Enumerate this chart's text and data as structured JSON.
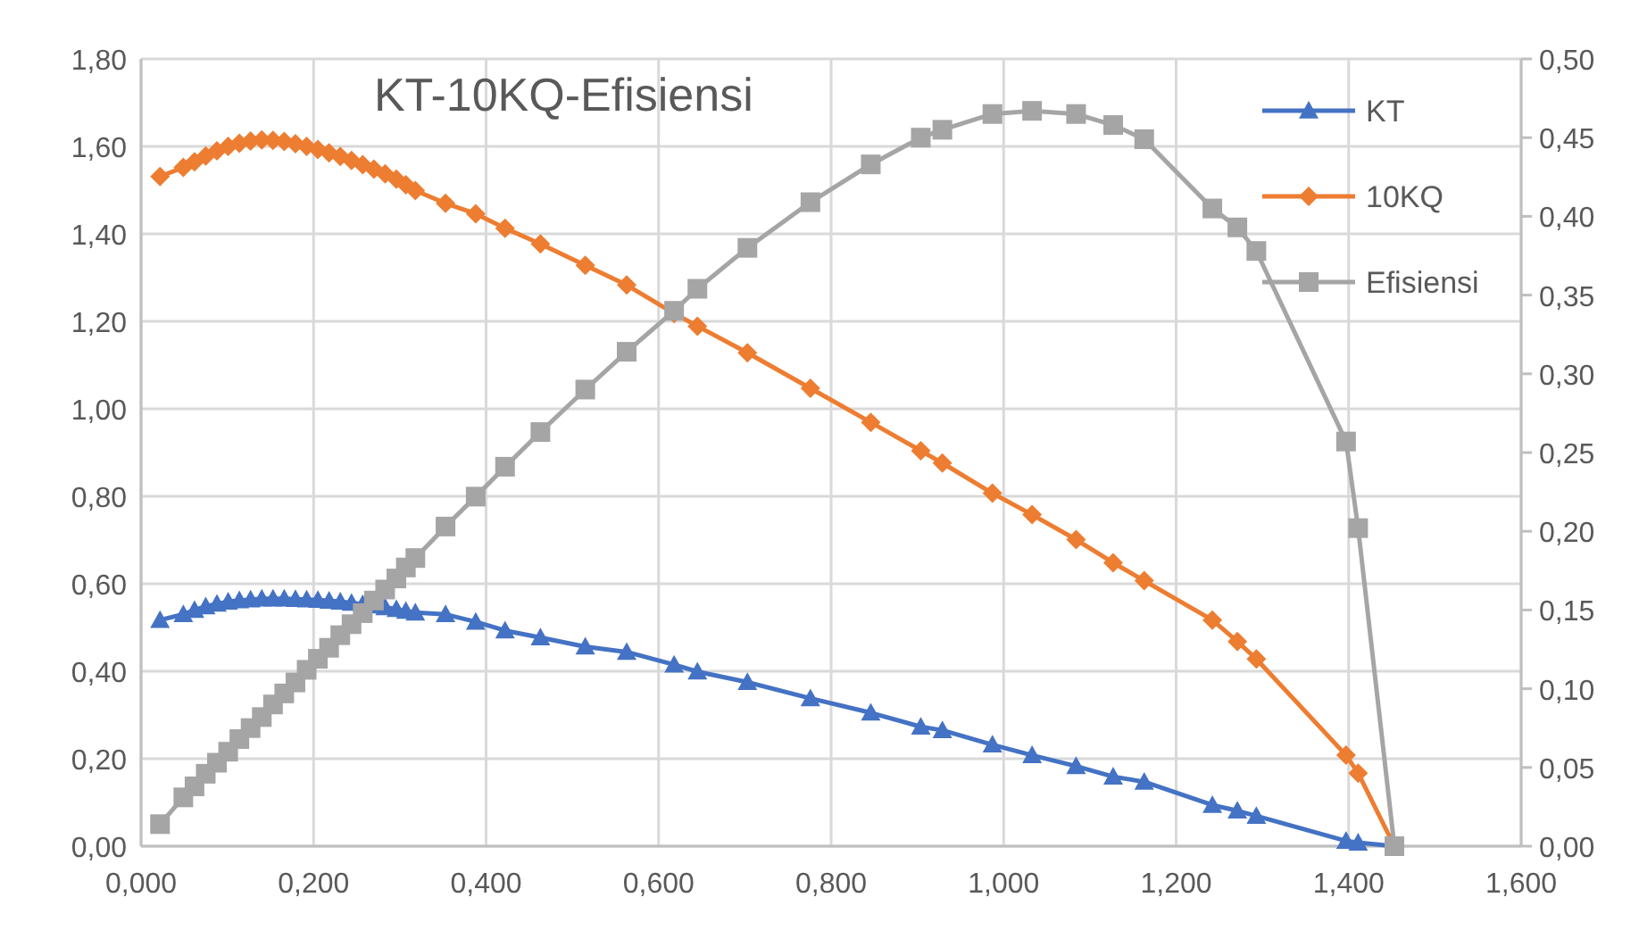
{
  "chart_data": {
    "type": "line",
    "title": "KT-10KQ-Efisiensi",
    "x": [
      0.022,
      0.049,
      0.062,
      0.075,
      0.088,
      0.101,
      0.114,
      0.127,
      0.14,
      0.153,
      0.166,
      0.179,
      0.192,
      0.205,
      0.218,
      0.231,
      0.244,
      0.257,
      0.27,
      0.283,
      0.296,
      0.307,
      0.318,
      0.353,
      0.388,
      0.422,
      0.463,
      0.515,
      0.563,
      0.618,
      0.645,
      0.703,
      0.776,
      0.846,
      0.904,
      0.929,
      0.987,
      1.033,
      1.084,
      1.127,
      1.163,
      1.242,
      1.271,
      1.293,
      1.397,
      1.411,
      1.453
    ],
    "series": [
      {
        "name": "KT",
        "color": "#4472c4",
        "marker": "triangle",
        "values": [
          0.517,
          0.53,
          0.54,
          0.548,
          0.554,
          0.559,
          0.562,
          0.564,
          0.566,
          0.566,
          0.566,
          0.565,
          0.564,
          0.563,
          0.561,
          0.559,
          0.556,
          0.553,
          0.55,
          0.546,
          0.542,
          0.538,
          0.534,
          0.53,
          0.513,
          0.493,
          0.477,
          0.456,
          0.444,
          0.415,
          0.399,
          0.375,
          0.338,
          0.305,
          0.273,
          0.265,
          0.232,
          0.208,
          0.183,
          0.159,
          0.147,
          0.094,
          0.081,
          0.069,
          0.012,
          0.008,
          0
        ]
      },
      {
        "name": "10KQ",
        "color": "#ed7d31",
        "marker": "diamond",
        "values": [
          1.531,
          1.552,
          1.565,
          1.578,
          1.59,
          1.6,
          1.607,
          1.612,
          1.615,
          1.614,
          1.611,
          1.606,
          1.6,
          1.593,
          1.585,
          1.577,
          1.568,
          1.558,
          1.548,
          1.537,
          1.525,
          1.512,
          1.499,
          1.47,
          1.446,
          1.413,
          1.377,
          1.328,
          1.283,
          1.218,
          1.189,
          1.128,
          1.047,
          0.969,
          0.904,
          0.876,
          0.807,
          0.758,
          0.701,
          0.648,
          0.607,
          0.517,
          0.468,
          0.428,
          0.208,
          0.167,
          0
        ]
      },
      {
        "name": "Efisiensi",
        "color": "#a5a5a5",
        "marker": "square",
        "axis": "y2",
        "values": [
          0.014,
          0.031,
          0.038,
          0.046,
          0.053,
          0.06,
          0.068,
          0.075,
          0.082,
          0.09,
          0.097,
          0.104,
          0.112,
          0.119,
          0.126,
          0.134,
          0.141,
          0.148,
          0.156,
          0.163,
          0.17,
          0.177,
          0.183,
          0.203,
          0.222,
          0.241,
          0.263,
          0.29,
          0.314,
          0.34,
          0.354,
          0.38,
          0.409,
          0.433,
          0.45,
          0.455,
          0.465,
          0.467,
          0.465,
          0.458,
          0.449,
          0.405,
          0.393,
          0.378,
          0.257,
          0.202,
          0
        ]
      }
    ],
    "xlim": [
      0,
      1.6
    ],
    "xticks": [
      {
        "value": 0,
        "label": "0,000"
      },
      {
        "value": 0.2,
        "label": "0,200"
      },
      {
        "value": 0.4,
        "label": "0,400"
      },
      {
        "value": 0.6,
        "label": "0,600"
      },
      {
        "value": 0.8,
        "label": "0,800"
      },
      {
        "value": 1.0,
        "label": "1,000"
      },
      {
        "value": 1.2,
        "label": "1,200"
      },
      {
        "value": 1.4,
        "label": "1,400"
      },
      {
        "value": 1.6,
        "label": "1,600"
      }
    ],
    "ylim": [
      0,
      1.8
    ],
    "yticks": [
      {
        "value": 0,
        "label": "0,00"
      },
      {
        "value": 0.2,
        "label": "0,20"
      },
      {
        "value": 0.4,
        "label": "0,40"
      },
      {
        "value": 0.6,
        "label": "0,60"
      },
      {
        "value": 0.8,
        "label": "0,80"
      },
      {
        "value": 1.0,
        "label": "1,00"
      },
      {
        "value": 1.2,
        "label": "1,20"
      },
      {
        "value": 1.4,
        "label": "1,40"
      },
      {
        "value": 1.6,
        "label": "1,60"
      },
      {
        "value": 1.8,
        "label": "1,80"
      }
    ],
    "y2lim": [
      0,
      0.5
    ],
    "y2ticks": [
      {
        "value": 0,
        "label": "0,00"
      },
      {
        "value": 0.05,
        "label": "0,05"
      },
      {
        "value": 0.1,
        "label": "0,10"
      },
      {
        "value": 0.15,
        "label": "0,15"
      },
      {
        "value": 0.2,
        "label": "0,20"
      },
      {
        "value": 0.25,
        "label": "0,25"
      },
      {
        "value": 0.3,
        "label": "0,30"
      },
      {
        "value": 0.35,
        "label": "0,35"
      },
      {
        "value": 0.4,
        "label": "0,40"
      },
      {
        "value": 0.45,
        "label": "0,45"
      },
      {
        "value": 0.5,
        "label": "0,50"
      }
    ],
    "grid": true,
    "legend": "top right",
    "line_style": "solid"
  }
}
